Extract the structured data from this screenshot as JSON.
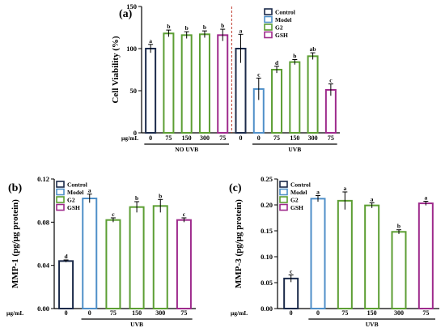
{
  "legend": [
    {
      "key": "control",
      "label": "Control"
    },
    {
      "key": "model",
      "label": "Model"
    },
    {
      "key": "g2",
      "label": "G2"
    },
    {
      "key": "gsh",
      "label": "GSH"
    }
  ],
  "colors": {
    "control": "#1b2a4a",
    "model": "#4f8fc8",
    "g2": "#5c9e33",
    "gsh": "#9e2a8c",
    "divider": "#c0392b"
  },
  "chart_data": [
    {
      "type": "bar",
      "panel_label": "(a)",
      "ylabel": "Cell Viability (%)",
      "ylim": [
        0,
        150
      ],
      "yticks": [
        "0",
        "50",
        "100",
        "150"
      ],
      "unit_label": "μg/mL",
      "categories": [
        "0",
        "75",
        "150",
        "300",
        "75",
        "0",
        "0",
        "75",
        "150",
        "300",
        "75"
      ],
      "series_keys": [
        "control",
        "g2",
        "g2",
        "g2",
        "gsh",
        "control",
        "model",
        "g2",
        "g2",
        "g2",
        "gsh"
      ],
      "values": [
        100,
        118,
        116,
        117,
        116,
        100,
        52,
        75,
        84,
        91,
        51
      ],
      "errors": [
        5,
        4,
        4,
        4,
        7,
        17,
        13,
        4,
        3,
        4,
        7
      ],
      "letters": [
        "a",
        "b",
        "b",
        "b",
        "b",
        "a",
        "c",
        "d",
        "b",
        "ab",
        "c"
      ],
      "groups": [
        {
          "label": "NO UVB",
          "start": 0,
          "end": 4
        },
        {
          "label": "UVB",
          "start": 6,
          "end": 10
        }
      ],
      "divider_after": 4,
      "legend_position": "top-right",
      "grid": false
    },
    {
      "type": "bar",
      "panel_label": "(b)",
      "ylabel": "MMP-1 (pg/μg protein)",
      "ylim": [
        0,
        0.12
      ],
      "yticks": [
        "0.00",
        "0.04",
        "0.08",
        "0.12"
      ],
      "unit_label": "μg/mL",
      "categories": [
        "0",
        "0",
        "75",
        "150",
        "300",
        "75"
      ],
      "series_keys": [
        "control",
        "model",
        "g2",
        "g2",
        "g2",
        "gsh"
      ],
      "values": [
        0.044,
        0.102,
        0.082,
        0.094,
        0.095,
        0.082
      ],
      "errors": [
        0.001,
        0.004,
        0.002,
        0.005,
        0.006,
        0.002
      ],
      "letters": [
        "d",
        "a",
        "c",
        "b",
        "b",
        "c"
      ],
      "groups": [
        {
          "label": "UVB",
          "start": 1,
          "end": 5
        }
      ],
      "legend_position": "top-left",
      "grid": false
    },
    {
      "type": "bar",
      "panel_label": "(c)",
      "ylabel": "MMP-3 (pg/μg protein)",
      "ylim": [
        0,
        0.25
      ],
      "yticks": [
        "0.00",
        "0.05",
        "0.10",
        "0.15",
        "0.20",
        "0.25"
      ],
      "unit_label": "μg/mL",
      "categories": [
        "0",
        "0",
        "75",
        "150",
        "300",
        "75"
      ],
      "series_keys": [
        "control",
        "model",
        "g2",
        "g2",
        "g2",
        "gsh"
      ],
      "values": [
        0.058,
        0.212,
        0.208,
        0.199,
        0.148,
        0.203
      ],
      "errors": [
        0.007,
        0.006,
        0.017,
        0.005,
        0.004,
        0.004
      ],
      "letters": [
        "c",
        "a",
        "a",
        "a",
        "b",
        "a"
      ],
      "groups": [
        {
          "label": "UVB",
          "start": 1,
          "end": 5
        }
      ],
      "legend_position": "top-left",
      "grid": false
    }
  ]
}
